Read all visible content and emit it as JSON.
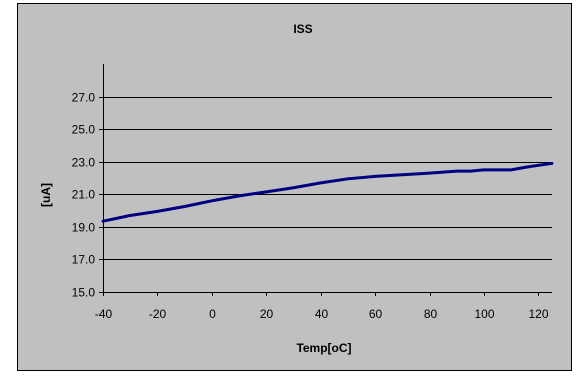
{
  "chart_data": {
    "type": "line",
    "title": "ISS",
    "xlabel": "Temp[oC]",
    "ylabel": "[uA]",
    "xlim": [
      -40,
      125
    ],
    "ylim": [
      15.0,
      29.0
    ],
    "x_ticks": [
      -40,
      -20,
      0,
      20,
      40,
      60,
      80,
      100,
      120
    ],
    "y_ticks": [
      "15.0",
      "17.0",
      "19.0",
      "21.0",
      "23.0",
      "25.0",
      "27.0"
    ],
    "grid": "horizontal",
    "legend": "none",
    "series": [
      {
        "color": "#000080",
        "x": [
          -40,
          -30,
          -20,
          -10,
          0,
          10,
          20,
          30,
          40,
          50,
          60,
          70,
          80,
          90,
          95,
          100,
          105,
          110,
          115,
          120,
          125
        ],
        "y": [
          19.35,
          19.7,
          19.95,
          20.25,
          20.6,
          20.9,
          21.15,
          21.4,
          21.7,
          21.95,
          22.1,
          22.2,
          22.3,
          22.42,
          22.42,
          22.5,
          22.5,
          22.5,
          22.65,
          22.78,
          22.9
        ]
      }
    ]
  },
  "colors": {
    "outer_background": "#ffffff",
    "chart_background": "#c0c0c0",
    "plot_background": "#c0c0c0",
    "line": "#000080",
    "axis": "#000000",
    "gridline": "#000000"
  }
}
